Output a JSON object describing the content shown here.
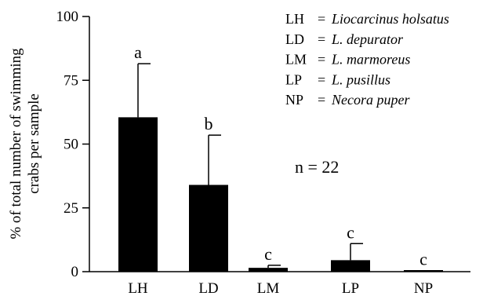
{
  "chart_data": {
    "type": "bar",
    "categories": [
      "LH",
      "LD",
      "LM",
      "LP",
      "NP"
    ],
    "values": [
      60.5,
      34.0,
      1.5,
      4.5,
      0.5
    ],
    "error_upper": [
      81.5,
      53.5,
      2.5,
      11.0,
      0.5
    ],
    "significance": [
      "a",
      "b",
      "c",
      "c",
      "c"
    ],
    "ylabel_lines": [
      "% of total number of swimming",
      "crabs per sample"
    ],
    "ylim": [
      0,
      100
    ],
    "yticks": [
      "0",
      "25",
      "50",
      "75",
      "100"
    ],
    "legend": [
      {
        "code": "LH",
        "eq": "=",
        "name": "Liocarcinus holsatus"
      },
      {
        "code": "LD",
        "eq": "=",
        "name": "L. depurator"
      },
      {
        "code": "LM",
        "eq": "=",
        "name": "L. marmoreus"
      },
      {
        "code": "LP",
        "eq": "=",
        "name": "L. pusillus"
      },
      {
        "code": "NP",
        "eq": "=",
        "name": "Necora puper"
      }
    ],
    "annotation": "n = 22",
    "grid": false,
    "legend_position": "top-right"
  }
}
